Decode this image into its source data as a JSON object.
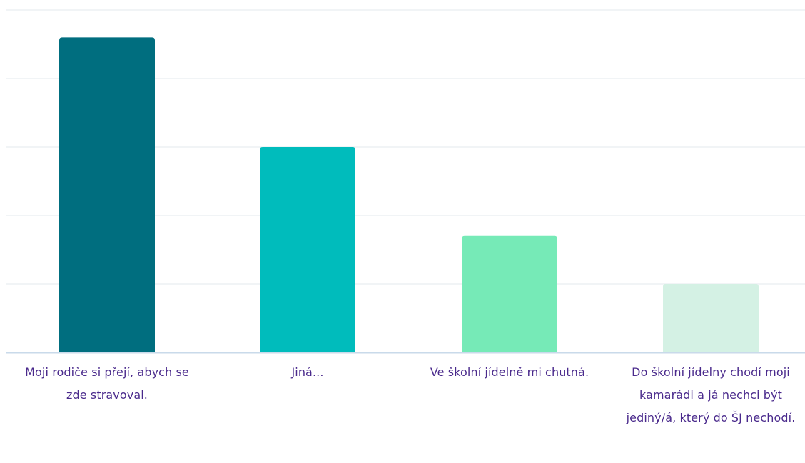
{
  "chart_data": {
    "type": "bar",
    "title": "",
    "xlabel": "",
    "ylabel": "",
    "categories": [
      "Moji rodiče si přejí, abych se zde stravoval.",
      "Jiná...",
      "Ve školní jídelně mi chutná.",
      "Do školní jídelny chodí moji kamarádi a já nechci být jediný/á, který do ŠJ nechodí."
    ],
    "values": [
      4.6,
      3.0,
      1.7,
      1.0
    ],
    "ylim": [
      0,
      5
    ],
    "grid": true,
    "legend": "none",
    "colors": [
      "#006e7f",
      "#00bcbc",
      "#76eab7",
      "#d4f1e4"
    ],
    "gridline_color": "#e3e8ee",
    "axis_color": "#c9daea",
    "label_color": "#4a2a8c"
  }
}
